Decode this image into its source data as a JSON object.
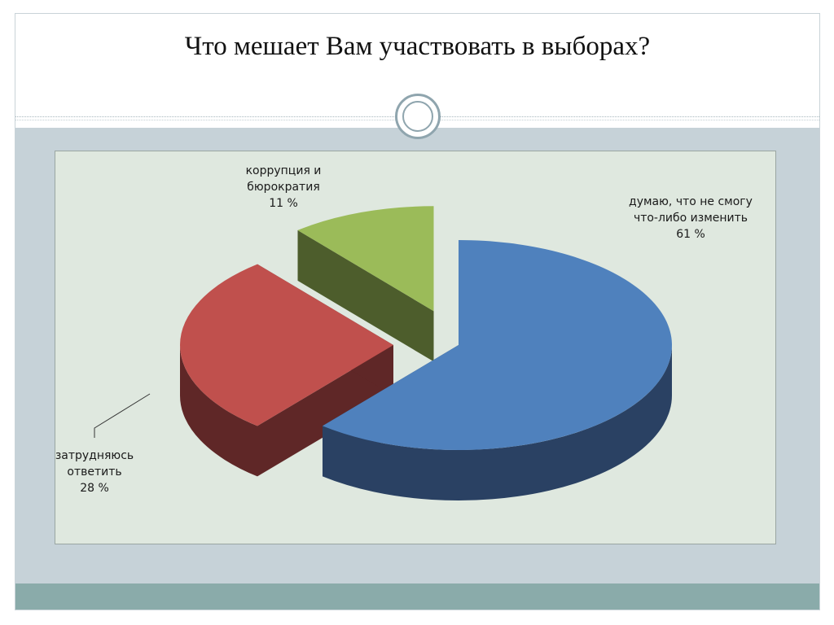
{
  "slide": {
    "title": "Что мешает Вам участвовать в выборах?"
  },
  "chart_data": {
    "type": "pie",
    "title": "Что мешает Вам участвовать в выборах?",
    "slices": [
      {
        "label_lines": [
          "думаю, что не смогу",
          "что-либо изменить"
        ],
        "value": 61,
        "value_text": "61 %",
        "color": "#4f81bd",
        "side_color": "#2a4163"
      },
      {
        "label_lines": [
          "затрудняюсь",
          "ответить"
        ],
        "value": 28,
        "value_text": "28 %",
        "color": "#c0504d",
        "side_color": "#5f2727"
      },
      {
        "label_lines": [
          "коррупция и",
          "бюрократия"
        ],
        "value": 11,
        "value_text": "11 %",
        "color": "#9bbb59",
        "side_color": "#4d5d2c"
      }
    ],
    "legend": "none",
    "style": "3d-exploded"
  },
  "colors": {
    "body_band": "#c6d2d8",
    "footer_band": "#8aabaa",
    "plot_background": "#dfe8df"
  }
}
